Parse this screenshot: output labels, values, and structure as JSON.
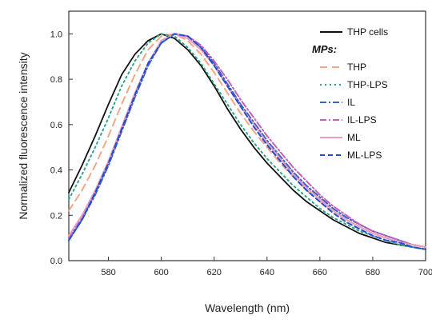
{
  "chart_data": {
    "type": "line",
    "xlabel": "Wavelength (nm)",
    "ylabel": "Normalized fluorescence intensity",
    "xlim": [
      565,
      700
    ],
    "ylim": [
      0,
      1.1
    ],
    "xticks": [
      580,
      600,
      620,
      640,
      660,
      680,
      700
    ],
    "xticklabels": [
      "580",
      "600",
      "620",
      "640",
      "660",
      "680",
      "700"
    ],
    "yticks": [
      0.0,
      0.2,
      0.4,
      0.6,
      0.8,
      1.0
    ],
    "yticklabels": [
      "0.0",
      "0.2",
      "0.4",
      "0.6",
      "0.8",
      "1.0"
    ],
    "grid": false,
    "legend_position": "top-right",
    "legend_group_title": "MPs:",
    "series": [
      {
        "name": "THP cells",
        "color": "#111111",
        "dash": "solid",
        "x": [
          565,
          570,
          575,
          580,
          585,
          590,
          595,
          600,
          605,
          610,
          615,
          620,
          625,
          630,
          635,
          640,
          645,
          650,
          655,
          660,
          665,
          670,
          675,
          680,
          685,
          690,
          695,
          700
        ],
        "y": [
          0.3,
          0.42,
          0.55,
          0.69,
          0.82,
          0.91,
          0.97,
          1.0,
          0.98,
          0.93,
          0.86,
          0.77,
          0.67,
          0.58,
          0.5,
          0.43,
          0.37,
          0.31,
          0.26,
          0.22,
          0.18,
          0.15,
          0.12,
          0.1,
          0.08,
          0.07,
          0.06,
          0.05
        ]
      },
      {
        "name": "THP",
        "color": "#f4a582",
        "dash": "dashed-wide",
        "x": [
          565,
          570,
          575,
          580,
          585,
          590,
          595,
          600,
          605,
          610,
          615,
          620,
          625,
          630,
          635,
          640,
          645,
          650,
          655,
          660,
          665,
          670,
          675,
          680,
          685,
          690,
          695,
          700
        ],
        "y": [
          0.22,
          0.31,
          0.42,
          0.55,
          0.69,
          0.82,
          0.93,
          0.99,
          1.0,
          0.97,
          0.91,
          0.83,
          0.74,
          0.65,
          0.57,
          0.5,
          0.43,
          0.37,
          0.31,
          0.26,
          0.22,
          0.18,
          0.15,
          0.12,
          0.1,
          0.08,
          0.07,
          0.06
        ]
      },
      {
        "name": "THP-LPS",
        "color": "#2ca58d",
        "dash": "dotted",
        "x": [
          565,
          570,
          575,
          580,
          585,
          590,
          595,
          600,
          605,
          610,
          615,
          620,
          625,
          630,
          635,
          640,
          645,
          650,
          655,
          660,
          665,
          670,
          675,
          680,
          685,
          690,
          695,
          700
        ],
        "y": [
          0.27,
          0.38,
          0.5,
          0.63,
          0.77,
          0.88,
          0.96,
          1.0,
          0.99,
          0.94,
          0.87,
          0.78,
          0.69,
          0.6,
          0.52,
          0.45,
          0.39,
          0.33,
          0.28,
          0.23,
          0.19,
          0.16,
          0.13,
          0.11,
          0.09,
          0.07,
          0.06,
          0.05
        ]
      },
      {
        "name": "IL",
        "color": "#3b5fc0",
        "dash": "dash-dot",
        "x": [
          565,
          570,
          575,
          580,
          585,
          590,
          595,
          600,
          605,
          610,
          615,
          620,
          625,
          630,
          635,
          640,
          645,
          650,
          655,
          660,
          665,
          670,
          675,
          680,
          685,
          690,
          695,
          700
        ],
        "y": [
          0.09,
          0.18,
          0.29,
          0.42,
          0.57,
          0.72,
          0.86,
          0.96,
          1.0,
          0.99,
          0.94,
          0.87,
          0.78,
          0.69,
          0.61,
          0.53,
          0.46,
          0.39,
          0.33,
          0.28,
          0.23,
          0.19,
          0.16,
          0.13,
          0.11,
          0.09,
          0.07,
          0.06
        ]
      },
      {
        "name": "IL-LPS",
        "color": "#c060c0",
        "dash": "dash-dot",
        "x": [
          565,
          570,
          575,
          580,
          585,
          590,
          595,
          600,
          605,
          610,
          615,
          620,
          625,
          630,
          635,
          640,
          645,
          650,
          655,
          660,
          665,
          670,
          675,
          680,
          685,
          690,
          695,
          700
        ],
        "y": [
          0.1,
          0.19,
          0.3,
          0.43,
          0.58,
          0.73,
          0.87,
          0.97,
          1.0,
          0.99,
          0.95,
          0.88,
          0.8,
          0.71,
          0.63,
          0.55,
          0.48,
          0.41,
          0.35,
          0.29,
          0.24,
          0.2,
          0.16,
          0.13,
          0.11,
          0.09,
          0.07,
          0.06
        ]
      },
      {
        "name": "ML",
        "color": "#e8a0b8",
        "dash": "solid",
        "x": [
          565,
          570,
          575,
          580,
          585,
          590,
          595,
          600,
          605,
          610,
          615,
          620,
          625,
          630,
          635,
          640,
          645,
          650,
          655,
          660,
          665,
          670,
          675,
          680,
          685,
          690,
          695,
          700
        ],
        "y": [
          0.11,
          0.2,
          0.31,
          0.44,
          0.59,
          0.74,
          0.87,
          0.97,
          1.0,
          0.98,
          0.93,
          0.86,
          0.77,
          0.68,
          0.6,
          0.52,
          0.45,
          0.38,
          0.32,
          0.27,
          0.22,
          0.18,
          0.15,
          0.12,
          0.1,
          0.08,
          0.07,
          0.06
        ]
      },
      {
        "name": "ML-LPS",
        "color": "#1f4fd6",
        "dash": "dashed",
        "x": [
          565,
          570,
          575,
          580,
          585,
          590,
          595,
          600,
          605,
          610,
          615,
          620,
          625,
          630,
          635,
          640,
          645,
          650,
          655,
          660,
          665,
          670,
          675,
          680,
          685,
          690,
          695,
          700
        ],
        "y": [
          0.09,
          0.18,
          0.3,
          0.43,
          0.58,
          0.73,
          0.87,
          0.96,
          1.0,
          0.99,
          0.94,
          0.86,
          0.77,
          0.68,
          0.59,
          0.51,
          0.44,
          0.37,
          0.31,
          0.26,
          0.21,
          0.17,
          0.14,
          0.11,
          0.09,
          0.08,
          0.06,
          0.05
        ]
      }
    ]
  }
}
